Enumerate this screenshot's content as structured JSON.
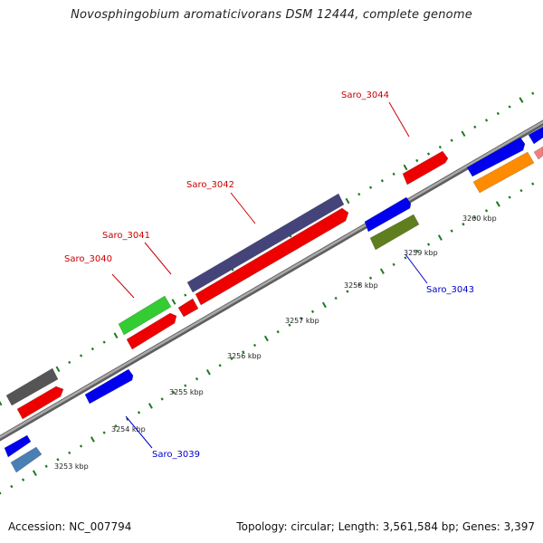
{
  "title": "Novosphingobium aromaticivorans DSM 12444, complete genome",
  "accession_text": "Accession: NC_007794",
  "summary_text": "Topology: circular; Length: 3,561,584 bp; Genes: 3,397",
  "colors": {
    "backbone": "#8c8c8c",
    "tick": "#1f7a1f",
    "label_forward": "#cc0000",
    "label_reverse": "#0000cc"
  },
  "scale_labels": [
    "3253 kbp",
    "3254 kbp",
    "3255 kbp",
    "3256 kbp",
    "3257 kbp",
    "3258 kbp",
    "3259 kbp",
    "3260 kbp"
  ],
  "gene_labels": [
    {
      "name": "Saro_3039",
      "strand": "reverse"
    },
    {
      "name": "Saro_3040",
      "strand": "forward"
    },
    {
      "name": "Saro_3041",
      "strand": "forward"
    },
    {
      "name": "Saro_3042",
      "strand": "forward"
    },
    {
      "name": "Saro_3043",
      "strand": "reverse"
    },
    {
      "name": "Saro_3044",
      "strand": "forward"
    }
  ],
  "features": [
    {
      "id": "f1",
      "color": "#0000ee"
    },
    {
      "id": "f2",
      "color": "#4a7fb5"
    },
    {
      "id": "f3",
      "color": "#555555"
    },
    {
      "id": "f4",
      "color": "#ee0000"
    },
    {
      "id": "f5",
      "color": "#0000ee"
    },
    {
      "id": "f6",
      "color": "#33cc33"
    },
    {
      "id": "f7",
      "color": "#ee0000"
    },
    {
      "id": "f8",
      "color": "#ee0000"
    },
    {
      "id": "f9",
      "color": "#ee0000"
    },
    {
      "id": "f10",
      "color": "#44447a"
    },
    {
      "id": "f11",
      "color": "#0000ee"
    },
    {
      "id": "f12",
      "color": "#5f7f1f"
    },
    {
      "id": "f13",
      "color": "#ee0000"
    },
    {
      "id": "f14",
      "color": "#0000ee"
    },
    {
      "id": "f15",
      "color": "#ff8c00"
    },
    {
      "id": "f16",
      "color": "#0000ee"
    },
    {
      "id": "f17",
      "color": "#f08080"
    }
  ]
}
